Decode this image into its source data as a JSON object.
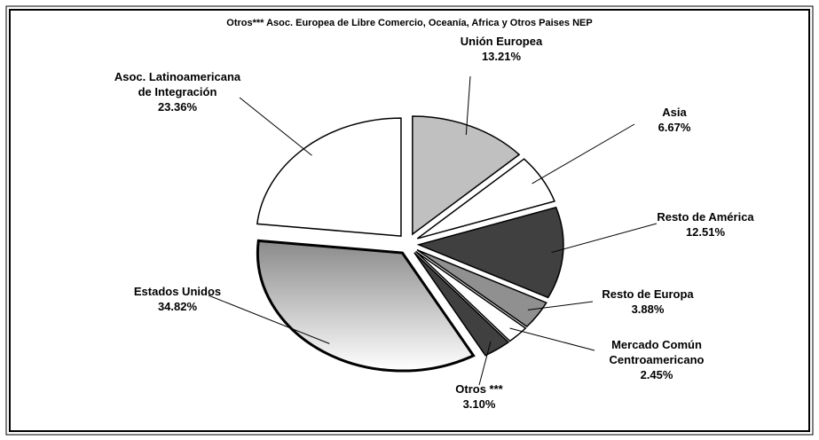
{
  "chart_data": {
    "type": "pie",
    "title": "Otros*** Asoc. Europea de Libre Comercio, Oceanía, Africa y Otros Paises NEP",
    "categories": [
      "Unión Europea",
      "Asia",
      "Resto de América",
      "Resto de Europa",
      "Mercado Común Centroamericano",
      "Otros ***",
      "Estados Unidos",
      "Asoc. Latinoamericana de Integración"
    ],
    "values": [
      13.21,
      6.67,
      12.51,
      3.88,
      2.45,
      3.1,
      34.82,
      23.36
    ],
    "value_labels": [
      "13.21%",
      "6.67%",
      "12.51%",
      "3.88%",
      "2.45%",
      "3.10%",
      "34.82%",
      "23.36%"
    ],
    "colors": [
      "#c0c0c0",
      "#ffffff",
      "#404040",
      "#909090",
      "#ffffff",
      "#404040",
      "#8a8a8a",
      "#ffffff"
    ]
  }
}
